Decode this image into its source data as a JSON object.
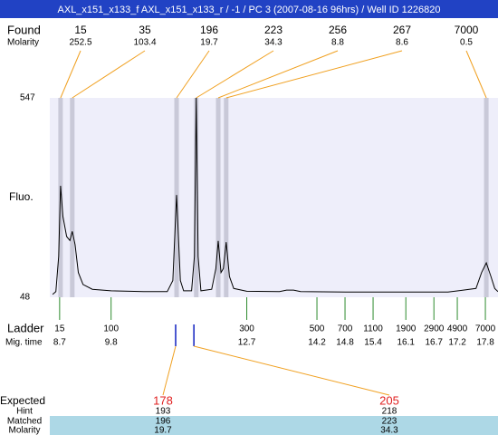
{
  "chart_data": {
    "type": "electropherogram",
    "title": "AXL_x151_x133_f  AXL_x151_x133_r / -1 / PC 3 (2007-08-16 96hrs) / Well ID 1226820",
    "ylabel": "Fluo.",
    "xlim": [
      8.49,
      18.07
    ],
    "ylim": [
      48,
      547
    ],
    "yticks": [
      48,
      547
    ],
    "trace": {
      "color": "#000000",
      "x": [
        8.55,
        8.62,
        8.68,
        8.72,
        8.77,
        8.85,
        8.92,
        8.97,
        9.03,
        9.1,
        9.2,
        9.4,
        9.8,
        10.5,
        11.0,
        11.12,
        11.2,
        11.28,
        11.35,
        11.52,
        11.58,
        11.62,
        11.66,
        11.72,
        11.95,
        12.04,
        12.09,
        12.15,
        12.2,
        12.26,
        12.33,
        12.42,
        12.7,
        13.4,
        13.55,
        13.7,
        13.85,
        15,
        17.0,
        17.6,
        17.72,
        17.82,
        17.92,
        18.0,
        18.07
      ],
      "values": [
        55,
        62,
        150,
        327,
        250,
        200,
        190,
        213,
        180,
        110,
        80,
        68,
        64,
        62,
        62,
        90,
        304,
        90,
        64,
        64,
        150,
        547,
        150,
        64,
        68,
        120,
        189,
        110,
        120,
        186,
        100,
        70,
        63,
        62,
        66,
        66,
        62,
        61,
        61,
        70,
        110,
        134,
        100,
        70,
        62
      ]
    },
    "found": {
      "label": "Found",
      "sizes": [
        15,
        35,
        196,
        223,
        256,
        267,
        7000
      ],
      "molarity_label": "Molarity",
      "molarity": [
        252.5,
        103.4,
        19.7,
        34.3,
        8.8,
        8.6,
        0.5
      ],
      "times": [
        8.72,
        8.97,
        11.2,
        11.62,
        12.09,
        12.26,
        17.82
      ]
    },
    "ladder": {
      "label": "Ladder",
      "sizes": [
        15,
        100,
        300,
        500,
        700,
        1100,
        1900,
        2900,
        4900,
        7000
      ],
      "time_label": "Mig. time",
      "times": [
        8.7,
        9.8,
        12.7,
        14.2,
        14.8,
        15.4,
        16.1,
        16.7,
        17.2,
        17.8
      ]
    },
    "expected": {
      "label": "Expected",
      "values": [
        178,
        205
      ],
      "times": [
        11.18,
        11.57
      ],
      "hint_label": "Hint",
      "hint": [
        193,
        218
      ],
      "matched_label": "Matched",
      "matched": [
        196,
        223
      ],
      "molarity_label": "Molarity",
      "molarity": [
        19.7,
        34.3
      ]
    }
  }
}
